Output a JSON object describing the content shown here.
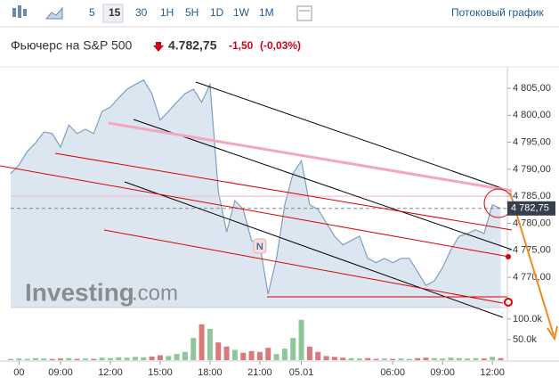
{
  "toolbar": {
    "intervals": [
      "5",
      "15",
      "30",
      "1H",
      "5H",
      "1D",
      "1W",
      "1M"
    ],
    "streaming_chart": "Потоковый график"
  },
  "header": {
    "name": "Фьючерс на S&P 500",
    "price": "4.782,75",
    "change": "-1,50",
    "change_pct": "(-0,03%)"
  },
  "chart_data": [
    {
      "type": "area",
      "color": "#7f9fc0",
      "fill": "#dbe6f1",
      "categories": [
        null,
        "00",
        null,
        null,
        null,
        null,
        "09:00",
        null,
        null,
        null,
        null,
        null,
        "12:00",
        null,
        null,
        null,
        null,
        null,
        "15:00",
        null,
        null,
        null,
        null,
        null,
        "18:00",
        null,
        null,
        null,
        null,
        null,
        "21:00",
        null,
        null,
        null,
        null,
        "05.01",
        null,
        null,
        null,
        null,
        null,
        null,
        null,
        null,
        null,
        null,
        "06:00",
        null,
        null,
        null,
        null,
        null,
        "09:00",
        null,
        null,
        null,
        null,
        null,
        "12:00",
        null
      ],
      "values": [
        4789.2,
        4790.8,
        4793.3,
        4794.9,
        4796.9,
        4796.6,
        4794.1,
        4798.2,
        4796.6,
        4797.4,
        4796.6,
        4800.7,
        4801.5,
        4803.2,
        4804.8,
        4805.7,
        4806.5,
        4804.0,
        4799.1,
        4800.7,
        4802.4,
        4804.0,
        4804.8,
        4802.4,
        4805.7,
        4785.9,
        4778.4,
        4784.2,
        4782.6,
        4776.8,
        4776.0,
        4766.9,
        4773.5,
        4783.4,
        4789.2,
        4791.6,
        4783.4,
        4782.6,
        4780.1,
        4777.6,
        4776.0,
        4776.8,
        4777.6,
        4773.5,
        4772.7,
        4773.5,
        4772.7,
        4773.5,
        4773.5,
        4771.0,
        4768.5,
        4769.3,
        4771.8,
        4775.1,
        4777.6,
        4778.1,
        4778.8,
        4778.1,
        4783.4,
        4782.75
      ],
      "ylim": [
        4764.4,
        4807.3
      ],
      "yticks": [
        {
          "value": 4770,
          "label": "4 770,00"
        },
        {
          "value": 4775,
          "label": "4 775,00"
        },
        {
          "value": 4780,
          "label": "4 780,00"
        },
        {
          "value": 4785,
          "label": "4 785,00"
        },
        {
          "value": 4790,
          "label": "4 790,00"
        },
        {
          "value": 4795,
          "label": "4 795,00"
        },
        {
          "value": 4800,
          "label": "4 800,00"
        },
        {
          "value": 4805,
          "label": "4 805,00"
        }
      ],
      "last_price": {
        "value": 4782.75,
        "label": "4 782,75"
      },
      "news_marker": "N",
      "watermark": [
        "Investing",
        ".com"
      ]
    },
    {
      "type": "bar",
      "up_color": "#8fc79a",
      "down_color": "#d9797b",
      "values": [
        3000,
        4000,
        3000,
        5000,
        4000,
        3000,
        4000,
        5000,
        3000,
        4000,
        3000,
        6000,
        5000,
        7000,
        6000,
        8000,
        7000,
        9000,
        12000,
        10000,
        15000,
        20000,
        54000,
        87000,
        76000,
        43000,
        33000,
        25000,
        18000,
        22000,
        20000,
        30000,
        15000,
        28000,
        54000,
        98000,
        33000,
        20000,
        10000,
        8000,
        6000,
        5000,
        4000,
        5000,
        3000,
        4000,
        3000,
        4000,
        3000,
        5000,
        6000,
        5000,
        4000,
        6000,
        5000,
        4000,
        5000,
        4000,
        8000,
        5000
      ],
      "ylim": [
        0,
        117000
      ],
      "yticks": [
        {
          "value": 50000,
          "label": "50.0k"
        },
        {
          "value": 100000,
          "label": "100.0k"
        }
      ]
    }
  ]
}
